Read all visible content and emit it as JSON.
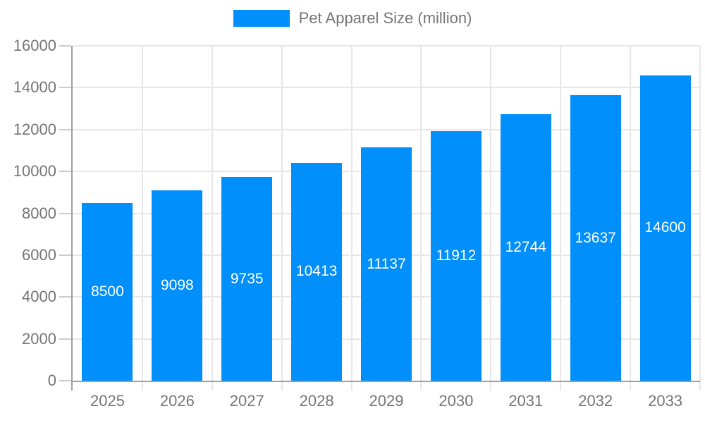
{
  "legend": {
    "label": "Pet Apparel Size (million)"
  },
  "chart_data": {
    "type": "bar",
    "title": "Pet Apparel Size (million)",
    "categories": [
      "2025",
      "2026",
      "2027",
      "2028",
      "2029",
      "2030",
      "2031",
      "2032",
      "2033"
    ],
    "values": [
      8500,
      9098,
      9735,
      10413,
      11137,
      11912,
      12744,
      13637,
      14600
    ],
    "xlabel": "",
    "ylabel": "",
    "ylim": [
      0,
      16000
    ],
    "yticks": [
      0,
      2000,
      4000,
      6000,
      8000,
      10000,
      12000,
      14000,
      16000
    ],
    "grid": true,
    "legend_position": "top",
    "colors": {
      "bar": "#008FFB",
      "bar_label": "#FFFFFF",
      "axis_text": "#757575",
      "grid_line": "#E7E7E7",
      "axis_line": "#9E9E9E",
      "tick_line": "#CCCCCC",
      "background": "#FFFFFF"
    }
  }
}
